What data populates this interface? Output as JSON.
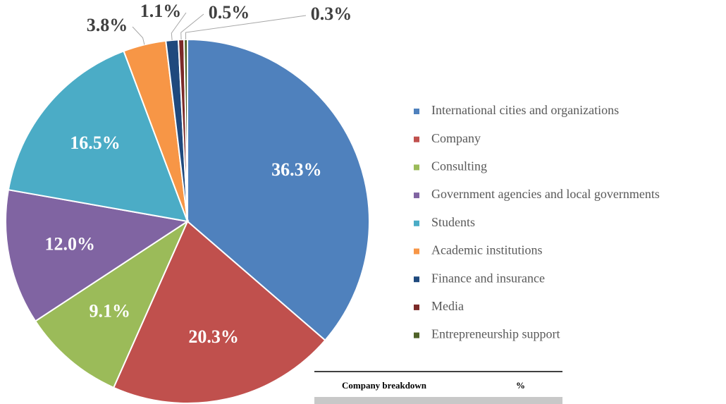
{
  "chart_data": {
    "type": "pie",
    "categories": [
      "International cities and organizations",
      "Company",
      "Consulting",
      "Government agencies and local governments",
      "Students",
      "Academic institutions",
      "Finance and insurance",
      "Media",
      "Entrepreneurship support"
    ],
    "values": [
      36.3,
      20.3,
      9.1,
      12.0,
      16.5,
      3.8,
      1.1,
      0.5,
      0.3
    ],
    "value_labels": [
      "36.3%",
      "20.3%",
      "9.1%",
      "12.0%",
      "16.5%",
      "3.8%",
      "1.1%",
      "0.5%",
      "0.3%"
    ],
    "colors": [
      "#4f81bd",
      "#c0504d",
      "#9bbb59",
      "#8064a2",
      "#4bacc6",
      "#f79646",
      "#1f497d",
      "#7b2a28",
      "#4f6228"
    ],
    "legend": "right"
  },
  "table": {
    "header": [
      "Company breakdown",
      "%"
    ]
  }
}
